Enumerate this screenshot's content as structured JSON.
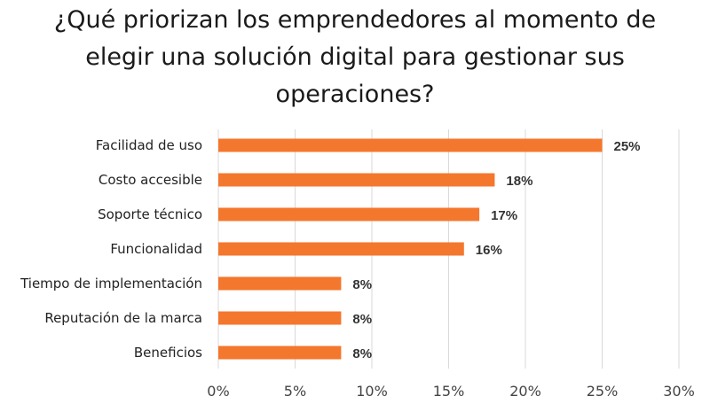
{
  "chart_data": {
    "type": "bar",
    "orientation": "horizontal",
    "title": "¿Qué priorizan los emprendedores al momento de elegir una solución digital para gestionar sus operaciones?",
    "categories": [
      "Facilidad de uso",
      "Costo accesible",
      "Soporte técnico",
      "Funcionalidad",
      "Tiempo de implementación",
      "Reputación de la marca",
      "Beneficios"
    ],
    "values": [
      25,
      18,
      17,
      16,
      8,
      8,
      8
    ],
    "value_labels": [
      "25%",
      "18%",
      "17%",
      "16%",
      "8%",
      "8%",
      "8%"
    ],
    "xlim": [
      0,
      30
    ],
    "xticks": [
      0,
      5,
      10,
      15,
      20,
      25,
      30
    ],
    "xtick_labels": [
      "0%",
      "5%",
      "10%",
      "15%",
      "20%",
      "25%",
      "30%"
    ],
    "grid": "vertical",
    "bar_color": "#F4772E",
    "xlabel": "",
    "ylabel": ""
  }
}
